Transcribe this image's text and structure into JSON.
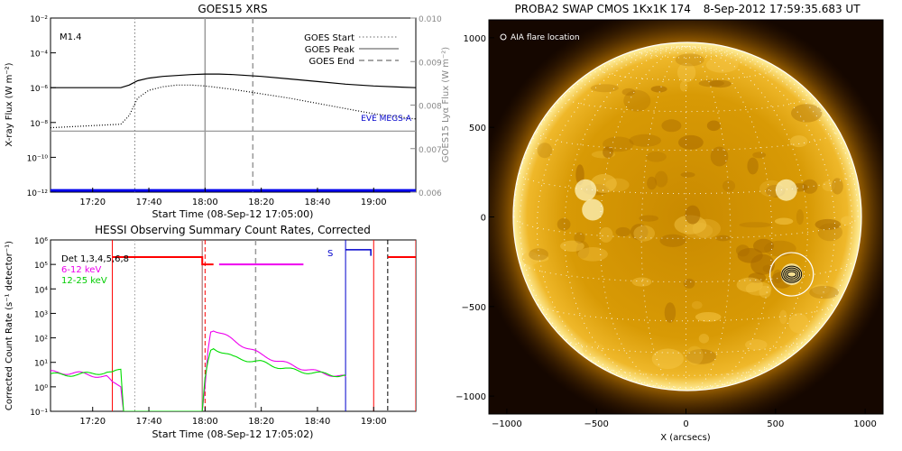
{
  "chart_data": [
    {
      "type": "line",
      "title": "GOES15 XRS",
      "xlabel": "Start Time (08-Sep-12 17:05:00)",
      "ylabel": "X-ray Flux (W m⁻²)",
      "y2label": "GOES15 Lyα Flux (W m⁻²)",
      "flare_class": "M1.4",
      "x_ticks": [
        "17:20",
        "17:40",
        "18:00",
        "18:20",
        "18:40",
        "19:00"
      ],
      "y_ticks": [
        "10⁻¹²",
        "10⁻¹⁰",
        "10⁻⁸",
        "10⁻⁶",
        "10⁻⁴",
        "10⁻²"
      ],
      "y2_ticks": [
        "0.006",
        "0.007",
        "0.008",
        "0.009",
        "0.010"
      ],
      "y_log_range": [
        -12,
        -2
      ],
      "y2_range": [
        0.006,
        0.01
      ],
      "legend": [
        {
          "label": "GOES Start",
          "style": "dotted",
          "color": "#888888"
        },
        {
          "label": "GOES Peak",
          "style": "solid",
          "color": "#888888"
        },
        {
          "label": "GOES End",
          "style": "dashed",
          "color": "#888888"
        }
      ],
      "overlay_label": "EVE MEGS-A",
      "event_lines": {
        "start": "17:35",
        "peak": "18:00",
        "end": "18:17"
      },
      "series": [
        {
          "name": "",
          "color": "#000000",
          "style": "solid",
          "t": [
            "17:05",
            "17:30",
            "17:33",
            "17:36",
            "17:40",
            "17:45",
            "17:50",
            "17:55",
            "18:00",
            "18:05",
            "18:10",
            "18:20",
            "18:30",
            "18:40",
            "18:50",
            "19:00",
            "19:10",
            "19:15"
          ],
          "log_flux": [
            -6.0,
            -6.0,
            -5.85,
            -5.6,
            -5.45,
            -5.35,
            -5.3,
            -5.25,
            -5.22,
            -5.22,
            -5.25,
            -5.35,
            -5.5,
            -5.65,
            -5.8,
            -5.9,
            -5.97,
            -6.0
          ]
        },
        {
          "name": "",
          "color": "#000000",
          "style": "dotted",
          "t": [
            "17:05",
            "17:30",
            "17:33",
            "17:36",
            "17:40",
            "17:45",
            "17:50",
            "17:55",
            "18:00",
            "18:05",
            "18:10",
            "18:20",
            "18:30",
            "18:40",
            "18:50",
            "19:00",
            "19:10",
            "19:15"
          ],
          "log_flux": [
            -8.3,
            -8.1,
            -7.6,
            -6.6,
            -6.15,
            -5.95,
            -5.85,
            -5.85,
            -5.9,
            -6.0,
            -6.1,
            -6.35,
            -6.6,
            -6.9,
            -7.2,
            -7.5,
            -7.7,
            -7.8
          ]
        },
        {
          "name": "",
          "color": "#999999",
          "style": "solid",
          "axis": "y2",
          "t": [
            "17:05",
            "19:15"
          ],
          "lya_flux": [
            0.0074,
            0.0074
          ]
        },
        {
          "name": "EVE MEGS-A",
          "color": "#0000ee",
          "style": "solid",
          "t": [
            "17:05",
            "19:15"
          ],
          "log_flux": [
            -11.9,
            -11.9
          ]
        }
      ]
    },
    {
      "type": "line",
      "title": "HESSI Observing Summary Count Rates, Corrected",
      "xlabel": "Start Time (08-Sep-12 17:05:02)",
      "ylabel": "Corrected Count Rate (s⁻¹ detector⁻¹)",
      "x_ticks": [
        "17:20",
        "17:40",
        "18:00",
        "18:20",
        "18:40",
        "19:00"
      ],
      "y_ticks": [
        "10⁻¹",
        "10⁰",
        "10¹",
        "10²",
        "10³",
        "10⁴",
        "10⁵",
        "10⁶"
      ],
      "y_log_range": [
        -1,
        6
      ],
      "legend": [
        {
          "label": "Det 1,3,4,5,6,8",
          "color": "#000000"
        },
        {
          "label": "6-12 keV",
          "color": "#ee00ee"
        },
        {
          "label": "12-25 keV",
          "color": "#00dd00"
        }
      ],
      "s_label": "S",
      "series": [
        {
          "name": "6-12 keV",
          "color": "#ee00ee",
          "t": [
            "17:05",
            "17:15",
            "17:25",
            "17:27",
            "17:30",
            "17:31",
            "17:59",
            "18:00",
            "18:01",
            "18:02",
            "18:03",
            "18:10",
            "18:20",
            "18:30",
            "18:40",
            "18:45",
            "18:50"
          ],
          "log_rate": [
            0.6,
            0.55,
            0.4,
            0.15,
            0.05,
            -1,
            -1,
            0.0,
            1.5,
            2.3,
            2.35,
            1.9,
            1.3,
            0.9,
            0.6,
            0.5,
            0.4
          ]
        },
        {
          "name": "12-25 keV",
          "color": "#00dd00",
          "t": [
            "17:05",
            "17:15",
            "17:25",
            "17:27",
            "17:30",
            "17:31",
            "17:59",
            "18:00",
            "18:01",
            "18:02",
            "18:03",
            "18:10",
            "18:20",
            "18:30",
            "18:40",
            "18:45",
            "18:50"
          ],
          "log_rate": [
            0.5,
            0.5,
            0.6,
            0.55,
            0.7,
            -1,
            -1,
            0.3,
            1.0,
            1.5,
            1.6,
            1.2,
            1.0,
            0.7,
            0.55,
            0.5,
            0.45
          ]
        },
        {
          "name": "6-12 keV (attenuated)",
          "color": "#ee00ee",
          "t": [
            "18:05",
            "18:35"
          ],
          "log_rate": [
            5.0,
            5.0
          ]
        },
        {
          "name": "flag",
          "color": "#ff0000",
          "t": [
            "17:27",
            "17:59",
            "18:00",
            "18:03",
            "19:00",
            "19:05",
            "19:15"
          ],
          "log_rate": [
            5.3,
            5.3,
            5.3,
            5.0,
            5.3,
            5.3,
            5.3
          ]
        },
        {
          "name": "S",
          "color": "#0000cc",
          "t": [
            "18:50",
            "18:59"
          ],
          "log_rate": [
            5.6,
            5.6
          ]
        }
      ]
    },
    {
      "type": "image",
      "title": "PROBA2 SWAP CMOS 1Kx1K 174",
      "date": "8-Sep-2012 17:59:35.683 UT",
      "legend_label": "AIA flare location",
      "xlabel": "X (arcsecs)",
      "x_ticks": [
        "−1000",
        "−500",
        "0",
        "500",
        "1000"
      ],
      "y_ticks": [
        "−1000",
        "−500",
        "0",
        "500",
        "1000"
      ],
      "range": [
        -1100,
        1100
      ],
      "solar_radius_arcsec": 960,
      "flare_location_arcsec": [
        590,
        -320
      ]
    }
  ]
}
